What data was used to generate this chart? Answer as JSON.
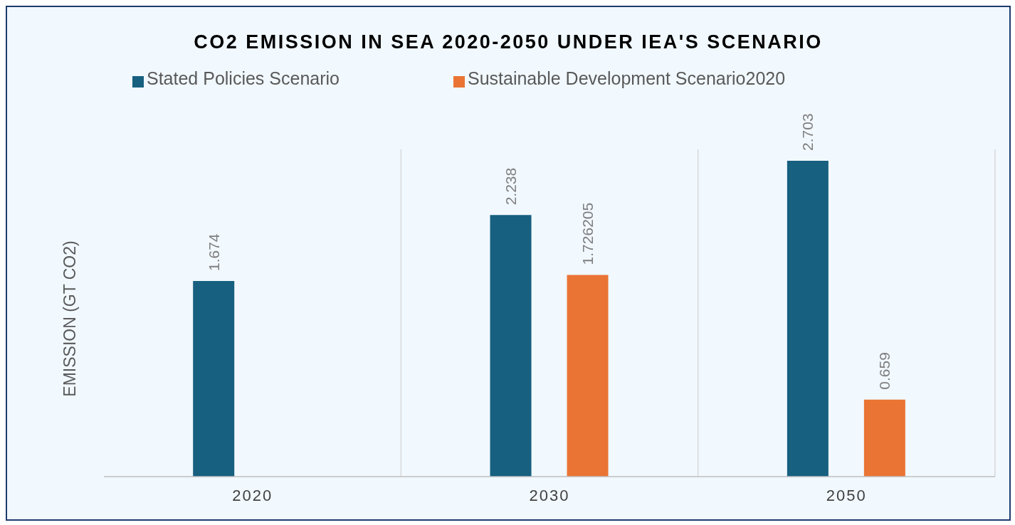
{
  "chart_data": {
    "type": "bar",
    "title": "CO2 EMISSION IN SEA 2020-2050 UNDER IEA'S SCENARIO",
    "ylabel": "EMISSION (GT CO2)",
    "categories": [
      "2020",
      "2030",
      "2050"
    ],
    "series": [
      {
        "name": "Stated Policies Scenario",
        "color": "#17607f",
        "values": [
          1.674,
          2.238,
          2.703
        ]
      },
      {
        "name": "Sustainable Development Scenario2020",
        "color": "#ea7434",
        "values": [
          null,
          1.726205,
          0.659
        ]
      }
    ],
    "data_labels": true,
    "grid": "x",
    "legend": "top",
    "tick_labels": "x"
  }
}
